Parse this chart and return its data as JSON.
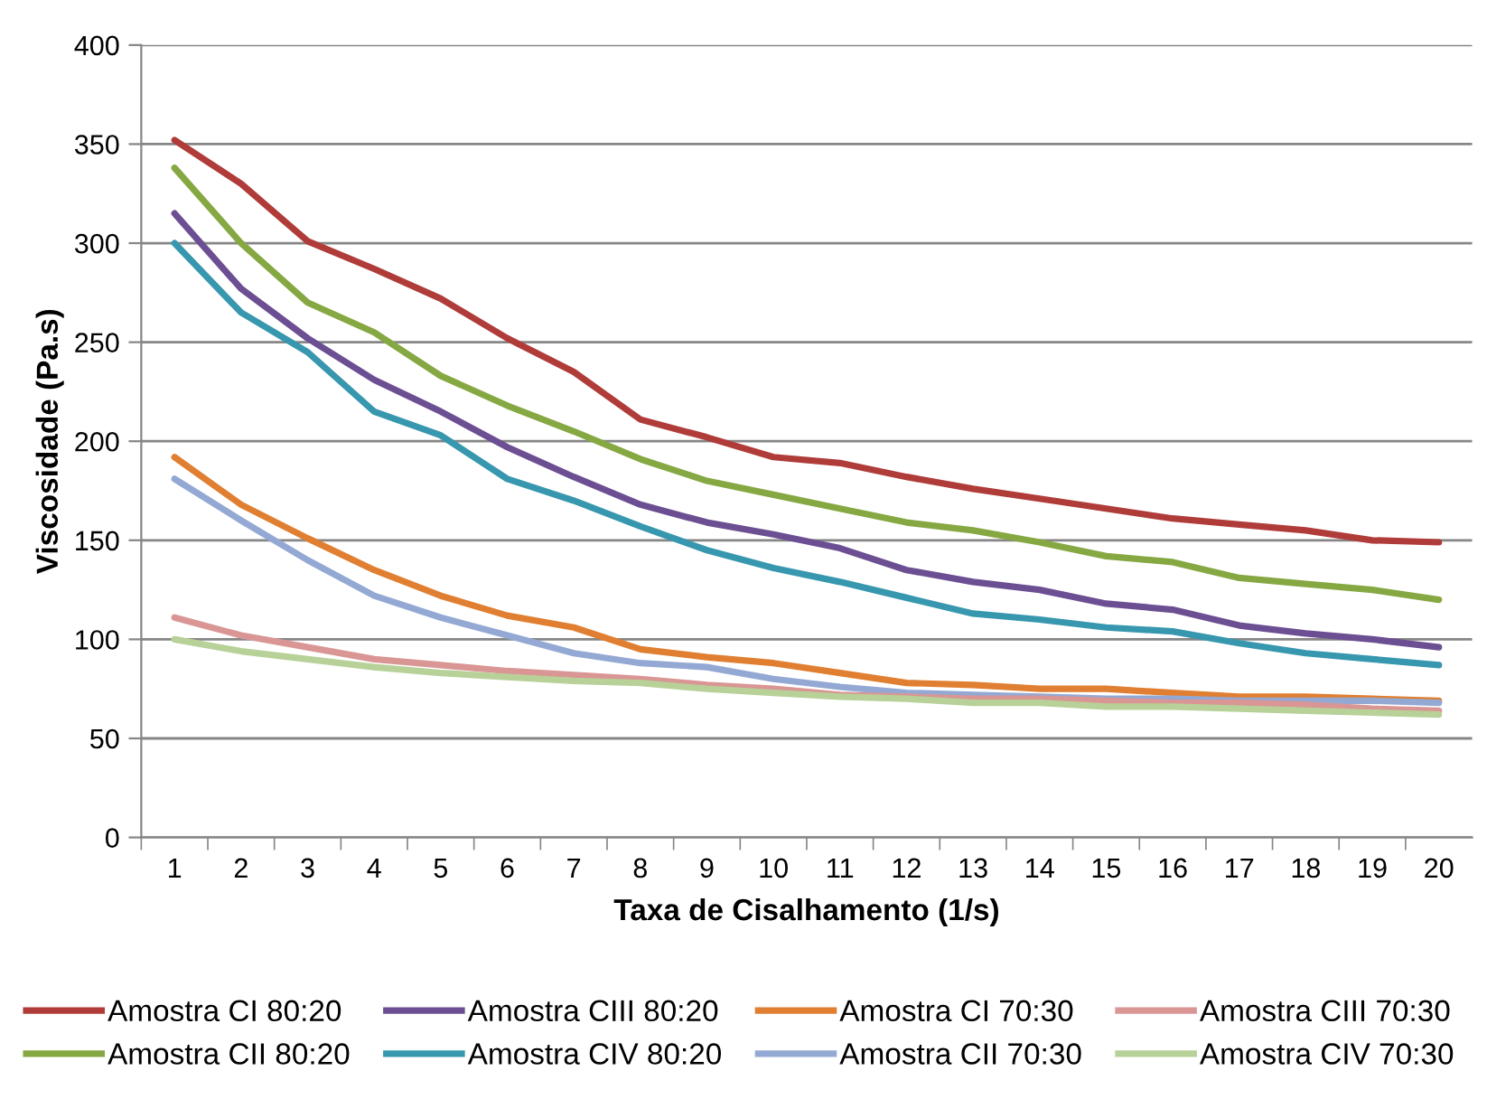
{
  "chart_data": {
    "type": "line",
    "xlabel": "Taxa de Cisalhamento (1/s)",
    "ylabel": "Viscosidade (Pa.s)",
    "categories": [
      "1",
      "2",
      "3",
      "4",
      "5",
      "6",
      "7",
      "8",
      "9",
      "10",
      "11",
      "12",
      "13",
      "14",
      "15",
      "16",
      "17",
      "18",
      "19",
      "20"
    ],
    "ylim": [
      0,
      400
    ],
    "yticks": [
      0,
      50,
      100,
      150,
      200,
      250,
      300,
      350,
      400
    ],
    "grid": "y",
    "legend": "bottom",
    "marker": "none",
    "line_style": "solid",
    "series": [
      {
        "name": "Amostra CI 80:20",
        "color": "#b03c3a",
        "values": [
          352,
          330,
          301,
          287,
          272,
          252,
          235,
          211,
          202,
          192,
          189,
          182,
          176,
          171,
          166,
          161,
          158,
          155,
          150,
          149
        ]
      },
      {
        "name": "Amostra CII 80:20",
        "color": "#86a843",
        "values": [
          338,
          300,
          270,
          255,
          233,
          218,
          205,
          191,
          180,
          173,
          166,
          159,
          155,
          149,
          142,
          139,
          131,
          128,
          125,
          120
        ]
      },
      {
        "name": "Amostra CIII 80:20",
        "color": "#6c4f92",
        "values": [
          315,
          277,
          252,
          231,
          215,
          197,
          182,
          168,
          159,
          153,
          146,
          135,
          129,
          125,
          118,
          115,
          107,
          103,
          100,
          96
        ]
      },
      {
        "name": "Amostra CIV 80:20",
        "color": "#3797ae",
        "values": [
          300,
          265,
          245,
          215,
          203,
          181,
          170,
          157,
          145,
          136,
          129,
          121,
          113,
          110,
          106,
          104,
          98,
          93,
          90,
          87
        ]
      },
      {
        "name": "Amostra CI 70:30",
        "color": "#e07f31",
        "values": [
          192,
          168,
          151,
          135,
          122,
          112,
          106,
          95,
          91,
          88,
          83,
          78,
          77,
          75,
          75,
          73,
          71,
          71,
          70,
          69
        ]
      },
      {
        "name": "Amostra CII 70:30",
        "color": "#93a9d4",
        "values": [
          181,
          160,
          140,
          122,
          111,
          102,
          93,
          88,
          86,
          80,
          76,
          73,
          72,
          71,
          70,
          70,
          69,
          69,
          69,
          68
        ]
      },
      {
        "name": "Amostra CIII 70:30",
        "color": "#d99694",
        "values": [
          111,
          102,
          96,
          90,
          87,
          84,
          82,
          80,
          77,
          75,
          72,
          71,
          70,
          70,
          69,
          68,
          68,
          67,
          65,
          64
        ]
      },
      {
        "name": "Amostra CIV 70:30",
        "color": "#b7d198",
        "values": [
          100,
          94,
          90,
          86,
          83,
          81,
          79,
          78,
          75,
          73,
          71,
          70,
          68,
          68,
          66,
          66,
          65,
          64,
          63,
          62
        ]
      }
    ]
  }
}
